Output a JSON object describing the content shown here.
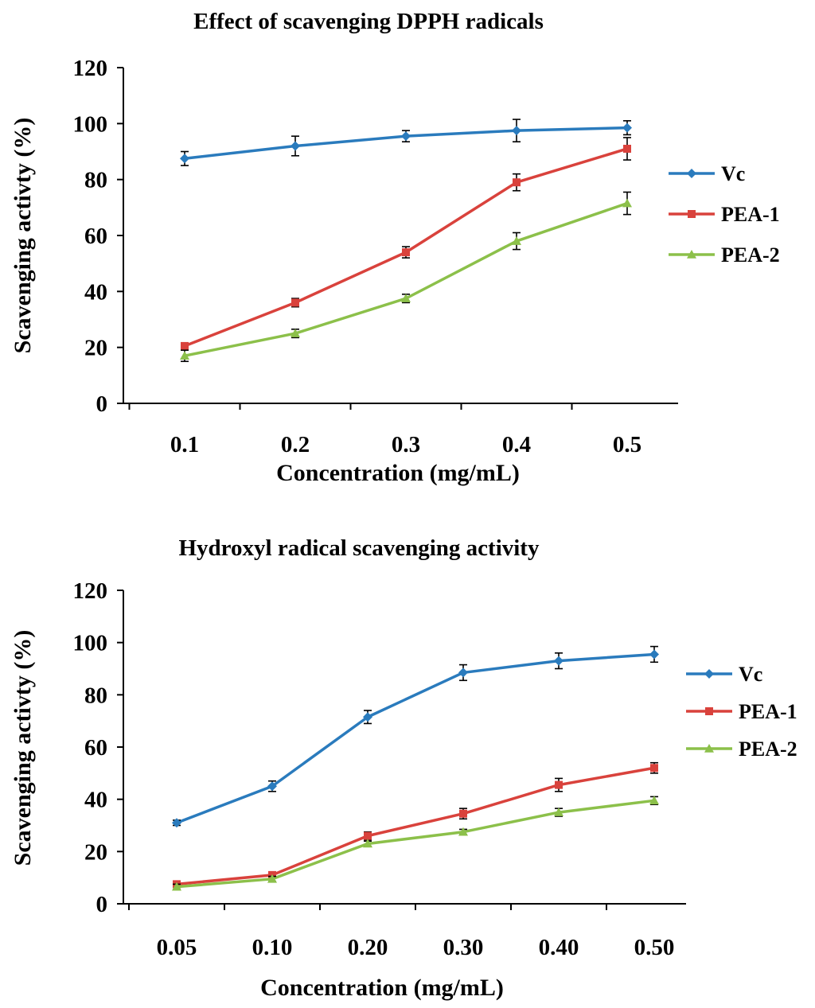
{
  "chart_data": [
    {
      "type": "line",
      "title": "Effect of scavenging DPPH  radicals",
      "xlabel": "Concentration (mg/mL)",
      "ylabel": "Scavenging activty (%)",
      "categories": [
        "0.1",
        "0.2",
        "0.3",
        "0.4",
        "0.5"
      ],
      "ylim": [
        0,
        120
      ],
      "yticks": [
        "0",
        "20",
        "40",
        "60",
        "80",
        "100",
        "120"
      ],
      "grid": false,
      "legend_position": "right",
      "series": [
        {
          "name": "Vc",
          "color": "#2a7bbd",
          "marker": "diamond",
          "values": [
            87.5,
            92,
            95.5,
            97.5,
            98.5
          ],
          "errors": [
            2.5,
            3.5,
            2,
            4,
            2.5
          ]
        },
        {
          "name": "PEA-1",
          "color": "#d9423c",
          "marker": "square",
          "values": [
            20.5,
            36,
            54,
            79,
            91
          ],
          "errors": [
            1,
            1.5,
            2,
            3,
            4
          ]
        },
        {
          "name": "PEA-2",
          "color": "#8cc04a",
          "marker": "triangle",
          "values": [
            17,
            25,
            37.5,
            58,
            71.5
          ],
          "errors": [
            2,
            1.5,
            1.5,
            3,
            4
          ]
        }
      ]
    },
    {
      "type": "line",
      "title": "Hydroxyl radical scavenging activity",
      "xlabel": "Concentration (mg/mL)",
      "ylabel": "Scavenging activty (%)",
      "categories": [
        "0.05",
        "0.10",
        "0.20",
        "0.30",
        "0.40",
        "0.50"
      ],
      "ylim": [
        0,
        120
      ],
      "yticks": [
        "0",
        "20",
        "40",
        "60",
        "80",
        "100",
        "120"
      ],
      "grid": false,
      "legend_position": "right",
      "series": [
        {
          "name": "Vc",
          "color": "#2a7bbd",
          "marker": "diamond",
          "values": [
            31,
            45,
            71.5,
            88.5,
            93,
            95.5
          ],
          "errors": [
            1,
            2,
            2.5,
            3,
            3,
            3
          ]
        },
        {
          "name": "PEA-1",
          "color": "#d9423c",
          "marker": "square",
          "values": [
            7.5,
            11,
            26,
            34.5,
            45.5,
            52
          ],
          "errors": [
            1,
            1,
            1.5,
            2,
            2.5,
            2
          ]
        },
        {
          "name": "PEA-2",
          "color": "#8cc04a",
          "marker": "triangle",
          "values": [
            6.5,
            9.5,
            23,
            27.5,
            35,
            39.5
          ],
          "errors": [
            1,
            1,
            1,
            1,
            1.5,
            1.5
          ]
        }
      ]
    }
  ]
}
